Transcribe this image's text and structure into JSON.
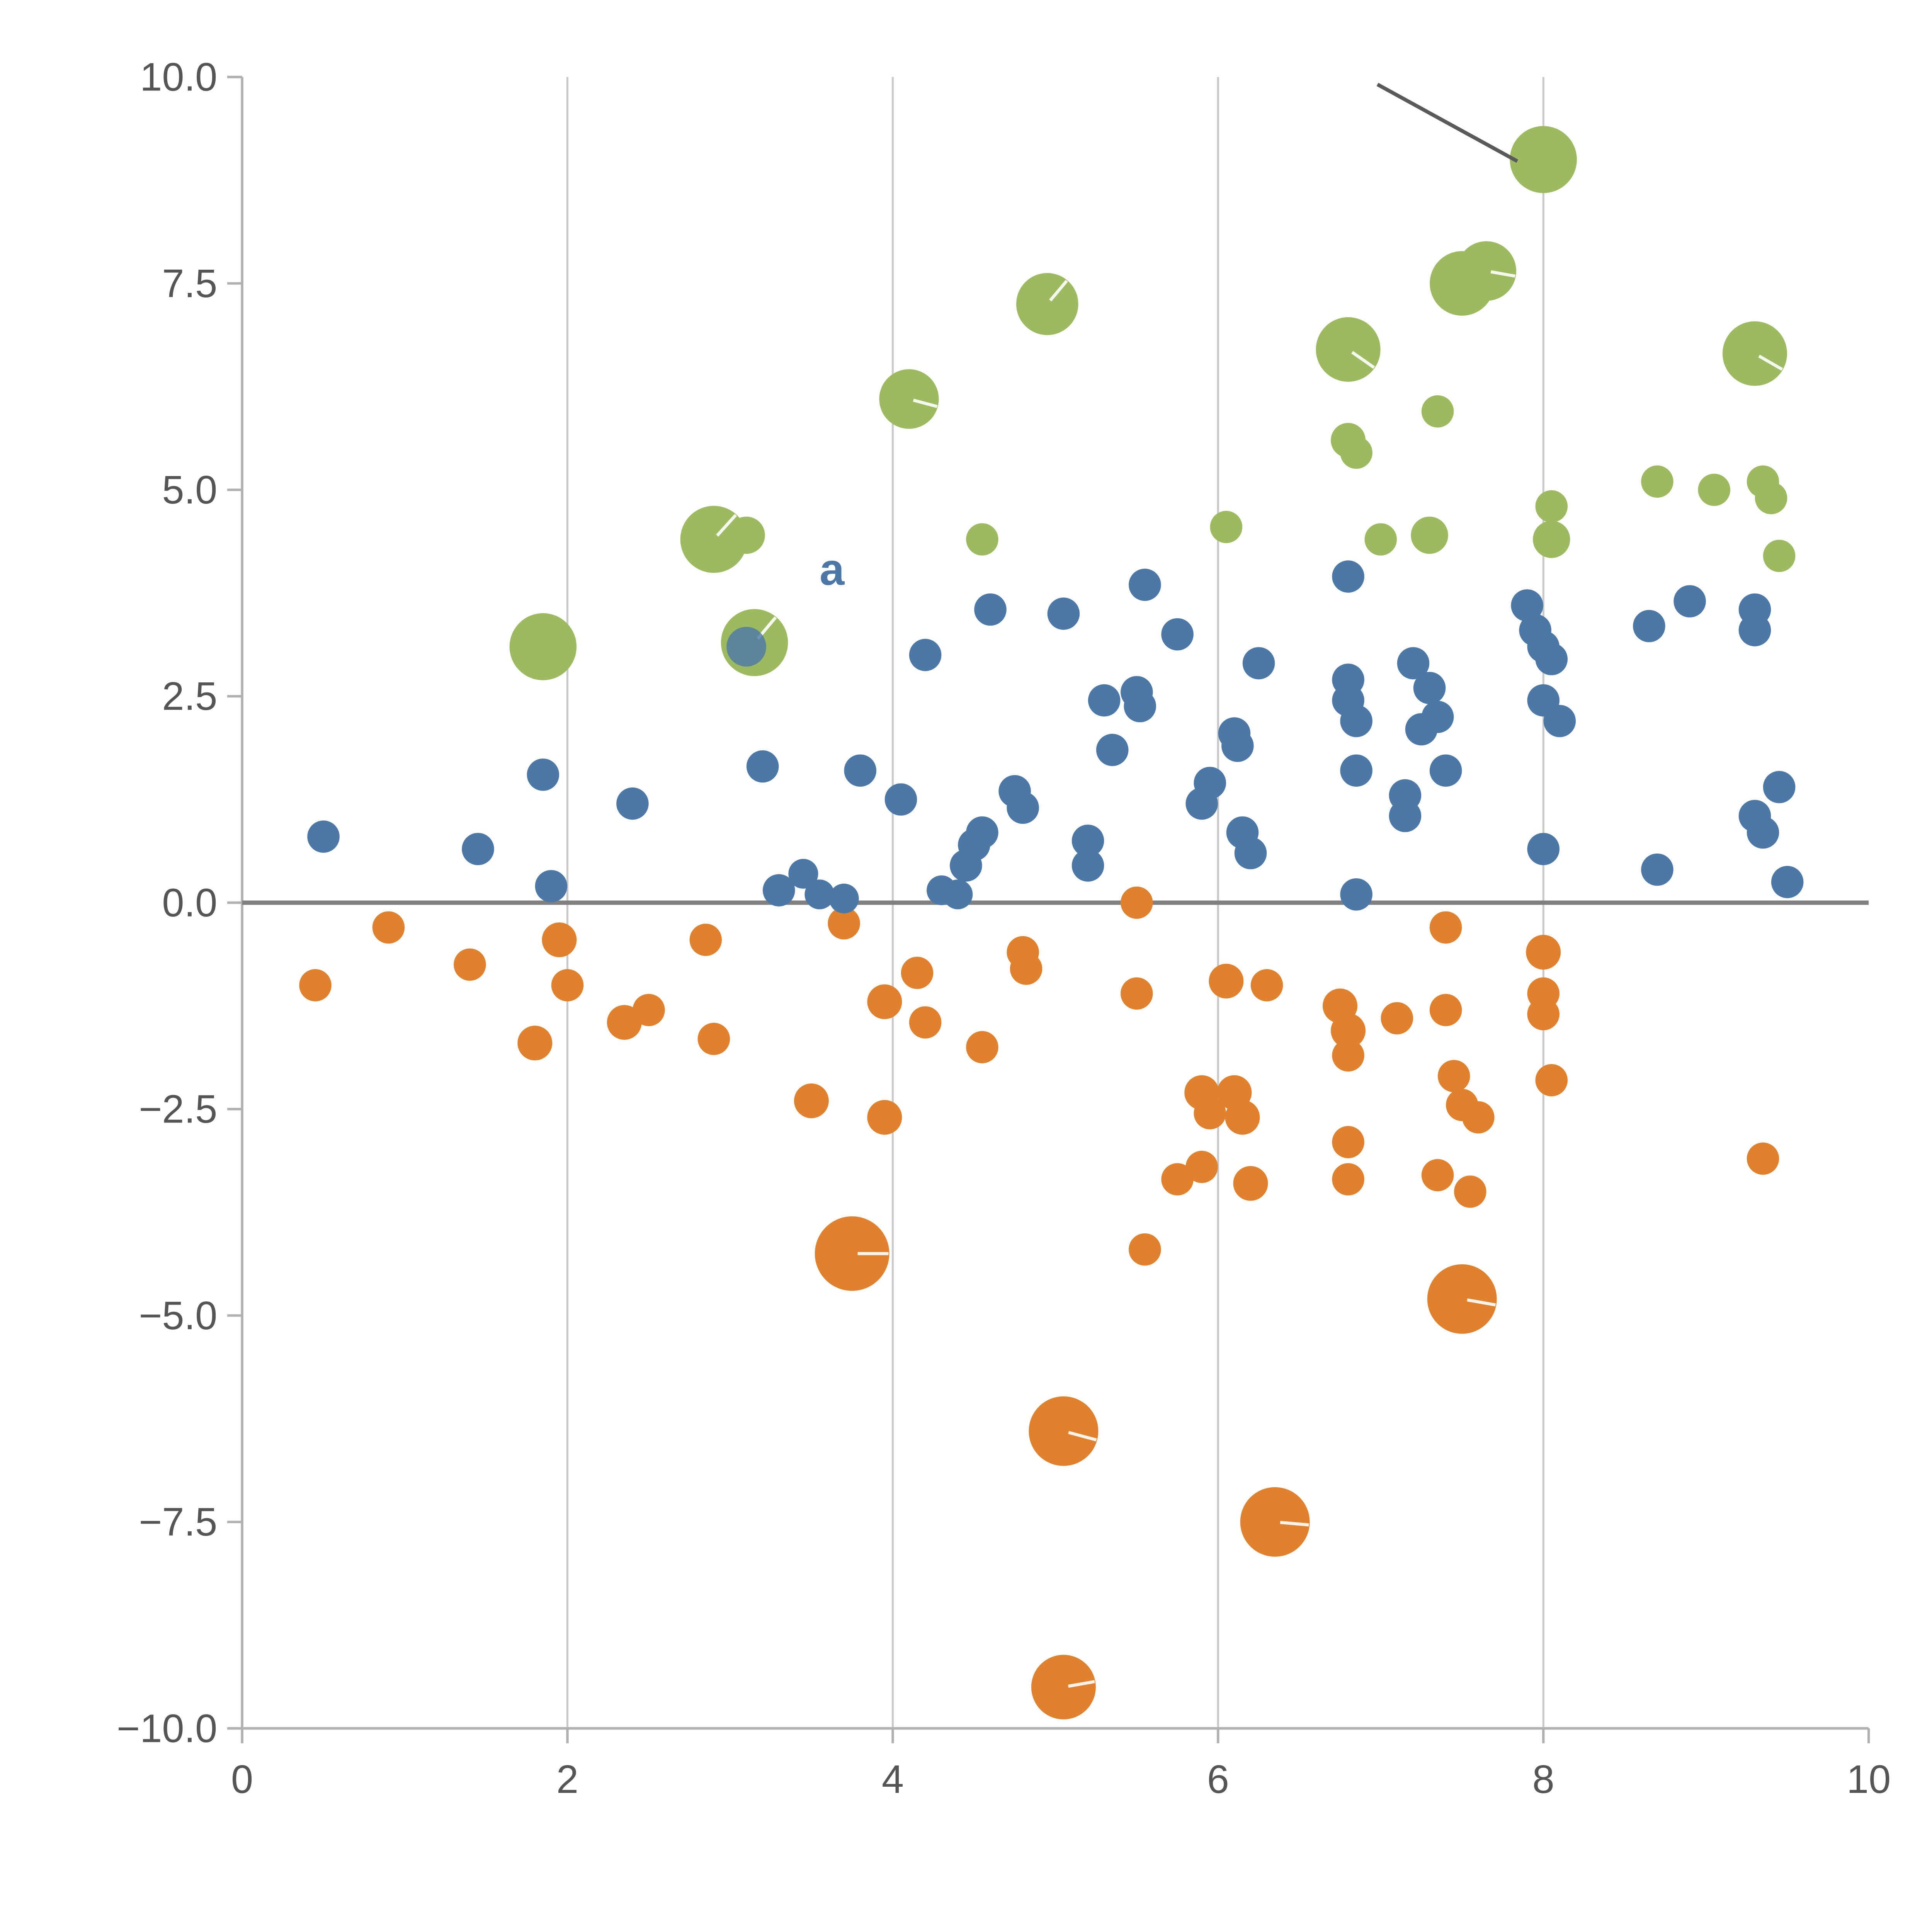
{
  "page": {
    "background": "#ffffff"
  },
  "chart_data": {
    "type": "scatter",
    "title": "",
    "xlabel": "",
    "ylabel": "",
    "xlim": [
      0,
      10
    ],
    "ylim": [
      -10,
      10
    ],
    "grid": "vertical-only",
    "legend": "none",
    "x_ticks": {
      "values": [
        0,
        2,
        4,
        6,
        8,
        10
      ],
      "labels": [
        "0",
        "2",
        "4",
        "6",
        "8",
        "10"
      ]
    },
    "y_ticks": {
      "values": [
        10,
        7.5,
        5,
        2.5,
        0,
        -2.5,
        -5,
        -7.5,
        -10
      ],
      "labels": [
        "10.0",
        "7.5",
        "5.0",
        "2.5",
        "0.0",
        "−2.5",
        "−5.0",
        "−7.5",
        "−10.0"
      ]
    },
    "grid_x_values": [
      2,
      4,
      6,
      8
    ],
    "zero_line": {
      "y": 0,
      "color": "#808080"
    },
    "colors": {
      "blue": "#4c78a8",
      "orange": "#e0812e",
      "green": "#9cba5f",
      "grid": "#c9c9c9",
      "spine": "#b0b0b0",
      "tick_text": "#555555",
      "annotation_line": "#5a5a5a",
      "whisker": "#ffffff"
    },
    "series": [
      {
        "name": "green",
        "color": "#9cba5f",
        "points": [
          [
            1.85,
            3.1,
            27
          ],
          [
            2.9,
            4.4,
            27,
            48
          ],
          [
            3.1,
            4.45,
            15
          ],
          [
            3.15,
            3.15,
            27,
            50
          ],
          [
            4.1,
            6.1,
            24,
            -15
          ],
          [
            4.55,
            4.4,
            13
          ],
          [
            4.95,
            7.25,
            25,
            50
          ],
          [
            6.05,
            4.55,
            13
          ],
          [
            6.8,
            6.7,
            26,
            -35
          ],
          [
            6.8,
            5.6,
            14
          ],
          [
            6.85,
            5.45,
            13
          ],
          [
            7.0,
            4.4,
            13
          ],
          [
            7.3,
            4.45,
            15
          ],
          [
            7.35,
            5.95,
            13
          ],
          [
            7.5,
            7.5,
            26,
            20
          ],
          [
            7.65,
            7.65,
            24,
            -10
          ],
          [
            8.0,
            9.0,
            27
          ],
          [
            8.05,
            4.8,
            13
          ],
          [
            8.05,
            4.4,
            15
          ],
          [
            8.7,
            5.1,
            13
          ],
          [
            9.05,
            5.0,
            13
          ],
          [
            9.3,
            6.65,
            26,
            -30
          ],
          [
            9.35,
            5.1,
            13
          ],
          [
            9.4,
            4.9,
            13
          ],
          [
            9.45,
            4.2,
            13
          ]
        ]
      },
      {
        "name": "orange",
        "color": "#e0812e",
        "points": [
          [
            0.45,
            -1.0,
            13
          ],
          [
            0.9,
            -0.3,
            13
          ],
          [
            1.4,
            -0.75,
            13
          ],
          [
            1.8,
            -1.7,
            14
          ],
          [
            1.95,
            -0.45,
            14
          ],
          [
            2.0,
            -1.0,
            13
          ],
          [
            2.35,
            -1.45,
            14
          ],
          [
            2.5,
            -1.3,
            13
          ],
          [
            2.85,
            -0.45,
            13
          ],
          [
            2.9,
            -1.65,
            13
          ],
          [
            3.5,
            -2.4,
            14
          ],
          [
            3.7,
            -0.25,
            13
          ],
          [
            3.75,
            -4.25,
            30,
            0
          ],
          [
            3.95,
            -2.6,
            14
          ],
          [
            3.95,
            -1.2,
            14
          ],
          [
            4.15,
            -0.85,
            13
          ],
          [
            4.2,
            -1.45,
            13
          ],
          [
            4.55,
            -1.75,
            13
          ],
          [
            4.8,
            -0.6,
            13
          ],
          [
            4.82,
            -0.8,
            13
          ],
          [
            5.05,
            -6.4,
            28,
            -15
          ],
          [
            5.05,
            -9.5,
            26,
            10
          ],
          [
            5.5,
            0.0,
            13
          ],
          [
            5.5,
            -1.1,
            13
          ],
          [
            5.55,
            -4.2,
            13
          ],
          [
            5.75,
            -3.35,
            13
          ],
          [
            5.9,
            -2.3,
            14
          ],
          [
            5.9,
            -3.2,
            13
          ],
          [
            5.95,
            -2.55,
            13
          ],
          [
            6.05,
            -0.95,
            14
          ],
          [
            6.1,
            -2.3,
            14
          ],
          [
            6.15,
            -2.6,
            14
          ],
          [
            6.2,
            -3.4,
            14
          ],
          [
            6.3,
            -1.0,
            13
          ],
          [
            6.35,
            -7.5,
            28,
            -5
          ],
          [
            6.75,
            -1.25,
            14
          ],
          [
            6.8,
            -1.55,
            14
          ],
          [
            6.8,
            -1.85,
            13
          ],
          [
            6.8,
            -2.9,
            13
          ],
          [
            6.8,
            -3.35,
            13
          ],
          [
            7.1,
            -1.4,
            13
          ],
          [
            7.35,
            -3.3,
            13
          ],
          [
            7.4,
            -0.3,
            13
          ],
          [
            7.4,
            -1.3,
            13
          ],
          [
            7.45,
            -2.1,
            13
          ],
          [
            7.5,
            -2.45,
            13
          ],
          [
            7.5,
            -4.8,
            28,
            -10
          ],
          [
            7.55,
            -3.5,
            13
          ],
          [
            7.6,
            -2.6,
            13
          ],
          [
            8.0,
            -0.6,
            14
          ],
          [
            8.0,
            -1.1,
            13
          ],
          [
            8.0,
            -1.35,
            13
          ],
          [
            8.05,
            -2.15,
            13
          ],
          [
            9.35,
            -3.1,
            13
          ]
        ]
      },
      {
        "name": "blue",
        "color": "#4c78a8",
        "points": [
          [
            0.5,
            0.8,
            13
          ],
          [
            1.45,
            0.65,
            13
          ],
          [
            1.85,
            1.55,
            13
          ],
          [
            1.9,
            0.2,
            13
          ],
          [
            2.4,
            1.2,
            13
          ],
          [
            3.1,
            3.1,
            16,
            null,
            0.8
          ],
          [
            3.2,
            1.65,
            13
          ],
          [
            3.3,
            0.15,
            13
          ],
          [
            3.45,
            0.35,
            12
          ],
          [
            3.55,
            0.1,
            12
          ],
          [
            3.7,
            0.05,
            12
          ],
          [
            3.8,
            1.6,
            13
          ],
          [
            4.05,
            1.25,
            13
          ],
          [
            4.2,
            3.0,
            13
          ],
          [
            4.3,
            0.15,
            12
          ],
          [
            4.4,
            0.1,
            12
          ],
          [
            4.45,
            0.45,
            13
          ],
          [
            4.5,
            0.7,
            13
          ],
          [
            4.55,
            0.85,
            13
          ],
          [
            4.6,
            3.55,
            13
          ],
          [
            4.75,
            1.35,
            13
          ],
          [
            4.8,
            1.15,
            13
          ],
          [
            5.05,
            3.5,
            13
          ],
          [
            5.2,
            0.75,
            13
          ],
          [
            5.2,
            0.45,
            13
          ],
          [
            5.3,
            2.45,
            13
          ],
          [
            5.35,
            1.85,
            13
          ],
          [
            5.5,
            2.55,
            13
          ],
          [
            5.52,
            2.38,
            13
          ],
          [
            5.55,
            3.85,
            13
          ],
          [
            5.75,
            3.25,
            13
          ],
          [
            5.9,
            1.2,
            13
          ],
          [
            5.95,
            1.45,
            13
          ],
          [
            6.1,
            2.05,
            13
          ],
          [
            6.12,
            1.9,
            13
          ],
          [
            6.15,
            0.85,
            13
          ],
          [
            6.2,
            0.6,
            13
          ],
          [
            6.25,
            2.9,
            13
          ],
          [
            6.8,
            3.95,
            13
          ],
          [
            6.8,
            2.7,
            13
          ],
          [
            6.8,
            2.45,
            13
          ],
          [
            6.85,
            2.2,
            13
          ],
          [
            6.85,
            1.6,
            13
          ],
          [
            6.85,
            0.1,
            13
          ],
          [
            7.15,
            1.3,
            13
          ],
          [
            7.15,
            1.05,
            13
          ],
          [
            7.2,
            2.9,
            13
          ],
          [
            7.25,
            2.1,
            13
          ],
          [
            7.3,
            2.6,
            13
          ],
          [
            7.35,
            2.25,
            13
          ],
          [
            7.4,
            1.6,
            13
          ],
          [
            7.9,
            3.6,
            13
          ],
          [
            7.95,
            3.3,
            13
          ],
          [
            8.0,
            3.1,
            13
          ],
          [
            8.05,
            2.95,
            13
          ],
          [
            8.0,
            2.45,
            13
          ],
          [
            8.1,
            2.2,
            13
          ],
          [
            8.0,
            0.65,
            13
          ],
          [
            8.65,
            3.35,
            13
          ],
          [
            8.7,
            0.4,
            13
          ],
          [
            8.9,
            3.65,
            13
          ],
          [
            9.3,
            3.55,
            13
          ],
          [
            9.3,
            3.3,
            13
          ],
          [
            9.3,
            1.05,
            13
          ],
          [
            9.35,
            0.85,
            13
          ],
          [
            9.45,
            1.4,
            13
          ],
          [
            9.5,
            0.25,
            13
          ]
        ]
      }
    ],
    "annotations": {
      "leader_line": {
        "x1": 6.98,
        "y1": 9.91,
        "x2": 7.84,
        "y2": 8.98
      },
      "texts": [
        {
          "x": 3.55,
          "y": 3.85,
          "text": "a",
          "color": "#4c78a8",
          "size": 36
        }
      ]
    }
  }
}
